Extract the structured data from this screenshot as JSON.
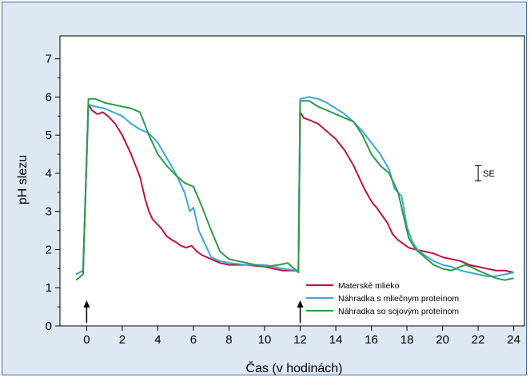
{
  "chart_data": {
    "type": "line",
    "xlabel": "Čas (v hodinách)",
    "ylabel": "pH slezu",
    "xlim": [
      -1.5,
      24.6
    ],
    "ylim": [
      0,
      7.6
    ],
    "xticks": [
      "0",
      "2",
      "4",
      "6",
      "8",
      "10",
      "12",
      "14",
      "16",
      "18",
      "20",
      "22",
      "24"
    ],
    "yticks": [
      "0",
      "1",
      "2",
      "3",
      "4",
      "5",
      "6",
      "7"
    ],
    "grid": false,
    "legend_position": "bottom-right",
    "se_label": "SE",
    "se_bar": {
      "x": 22.0,
      "y_low": 3.8,
      "y_high": 4.2
    },
    "meal_markers_x": [
      0,
      12
    ],
    "series": [
      {
        "name": "Materské mlieko",
        "color": "#c0133f",
        "x": [
          -0.6,
          -0.2,
          0.1,
          0.3,
          0.6,
          0.9,
          1.2,
          1.6,
          2.0,
          2.5,
          3.0,
          3.3,
          3.5,
          3.7,
          3.9,
          4.2,
          4.5,
          4.8,
          5.0,
          5.3,
          5.6,
          5.9,
          6.2,
          6.5,
          7.0,
          7.5,
          8.0,
          9.0,
          10.0,
          11.0,
          11.9,
          12.0,
          12.2,
          12.5,
          13.0,
          13.5,
          14.0,
          14.5,
          15.0,
          15.3,
          15.6,
          15.9,
          16.1,
          16.3,
          16.6,
          16.9,
          17.2,
          17.5,
          17.8,
          18.1,
          18.5,
          19.0,
          19.5,
          20.0,
          20.5,
          21.0,
          21.5,
          22.0,
          22.5,
          23.0,
          23.5,
          24.0
        ],
        "y": [
          1.35,
          1.45,
          5.8,
          5.65,
          5.55,
          5.6,
          5.5,
          5.3,
          5.0,
          4.5,
          3.9,
          3.3,
          3.0,
          2.8,
          2.7,
          2.55,
          2.35,
          2.25,
          2.2,
          2.1,
          2.05,
          2.1,
          1.95,
          1.85,
          1.75,
          1.65,
          1.6,
          1.6,
          1.55,
          1.45,
          1.45,
          5.6,
          5.45,
          5.4,
          5.3,
          5.1,
          4.9,
          4.6,
          4.2,
          3.9,
          3.6,
          3.35,
          3.2,
          3.1,
          2.9,
          2.7,
          2.4,
          2.25,
          2.15,
          2.05,
          2.0,
          1.95,
          1.9,
          1.8,
          1.75,
          1.7,
          1.6,
          1.55,
          1.5,
          1.45,
          1.45,
          1.4
        ]
      },
      {
        "name": "Náhradka s mliečnym proteínom",
        "color": "#3aa8dc",
        "x": [
          -0.6,
          -0.2,
          0.1,
          0.5,
          1.0,
          1.5,
          2.0,
          2.5,
          3.0,
          3.5,
          4.0,
          4.5,
          5.0,
          5.5,
          5.8,
          6.0,
          6.3,
          6.6,
          7.0,
          7.5,
          8.0,
          9.0,
          10.0,
          11.0,
          11.9,
          12.0,
          12.5,
          13.0,
          13.5,
          14.0,
          14.5,
          15.0,
          15.5,
          16.0,
          16.5,
          17.0,
          17.3,
          17.5,
          17.7,
          18.0,
          18.3,
          18.6,
          19.0,
          19.5,
          20.0,
          20.5,
          21.0,
          21.5,
          22.0,
          22.5,
          23.0,
          23.5,
          24.0
        ],
        "y": [
          1.35,
          1.45,
          5.8,
          5.75,
          5.7,
          5.6,
          5.5,
          5.3,
          5.15,
          5.05,
          4.8,
          4.4,
          4.0,
          3.5,
          3.0,
          3.1,
          2.5,
          2.2,
          1.8,
          1.7,
          1.65,
          1.6,
          1.6,
          1.5,
          1.45,
          5.95,
          6.0,
          5.95,
          5.85,
          5.7,
          5.55,
          5.35,
          5.1,
          4.8,
          4.5,
          4.1,
          3.6,
          3.5,
          3.4,
          2.6,
          2.2,
          2.0,
          1.85,
          1.7,
          1.6,
          1.55,
          1.45,
          1.4,
          1.35,
          1.3,
          1.3,
          1.35,
          1.4
        ]
      },
      {
        "name": "Náhradka so sojovým proteínom",
        "color": "#2f9b46",
        "x": [
          -0.6,
          -0.2,
          0.1,
          0.5,
          1.0,
          1.5,
          2.0,
          2.5,
          3.0,
          3.5,
          4.0,
          4.5,
          5.0,
          5.5,
          6.0,
          6.5,
          7.0,
          7.5,
          8.0,
          8.5,
          9.0,
          10.0,
          10.8,
          11.3,
          11.9,
          12.0,
          12.5,
          13.0,
          13.5,
          14.0,
          14.5,
          15.0,
          15.5,
          16.0,
          16.5,
          17.0,
          17.5,
          17.8,
          18.1,
          18.5,
          19.0,
          19.5,
          20.0,
          20.5,
          21.0,
          21.3,
          21.6,
          22.0,
          22.5,
          23.0,
          23.5,
          24.0
        ],
        "y": [
          1.2,
          1.35,
          5.95,
          5.95,
          5.85,
          5.8,
          5.75,
          5.7,
          5.6,
          5.0,
          4.5,
          4.2,
          3.95,
          3.75,
          3.65,
          3.1,
          2.5,
          1.95,
          1.75,
          1.7,
          1.65,
          1.55,
          1.6,
          1.65,
          1.4,
          5.9,
          5.9,
          5.75,
          5.65,
          5.55,
          5.45,
          5.35,
          5.0,
          4.5,
          4.2,
          4.0,
          3.5,
          2.9,
          2.3,
          2.0,
          1.8,
          1.6,
          1.5,
          1.45,
          1.55,
          1.6,
          1.55,
          1.45,
          1.35,
          1.25,
          1.2,
          1.25
        ]
      }
    ]
  }
}
